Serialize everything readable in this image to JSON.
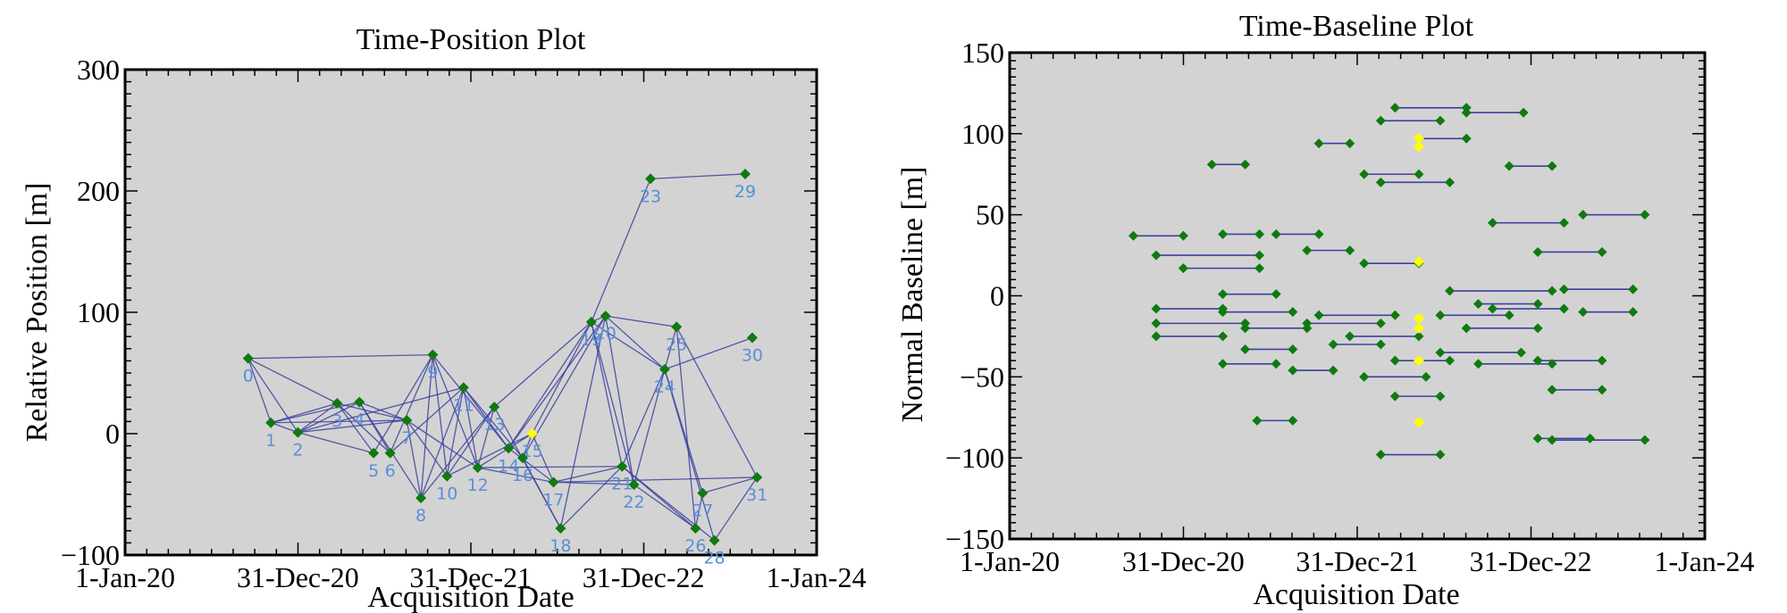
{
  "colors": {
    "plot_bg": "#d3d3d3",
    "edge": "#3b3f9e",
    "marker": "#0f7a0f",
    "reference": "#ffff00",
    "point_label": "#5b8fd6"
  },
  "chart_data": [
    {
      "type": "scatter",
      "title": "Time-Position Plot",
      "xlabel": "Acquisition Date",
      "ylabel": "Relative Position [m]",
      "xlim": [
        0,
        1461
      ],
      "ylim": [
        -100,
        300
      ],
      "x_ticks": [
        {
          "value": 0,
          "label": "1-Jan-20"
        },
        {
          "value": 365,
          "label": "31-Dec-20"
        },
        {
          "value": 730,
          "label": "31-Dec-21"
        },
        {
          "value": 1095,
          "label": "31-Dec-22"
        },
        {
          "value": 1460,
          "label": "1-Jan-24"
        }
      ],
      "y_ticks": [
        {
          "value": 300,
          "label": "300"
        },
        {
          "value": 200,
          "label": "200"
        },
        {
          "value": 100,
          "label": "100"
        },
        {
          "value": 0,
          "label": "0"
        },
        {
          "value": -100,
          "label": "−100"
        }
      ],
      "reference_point": 15,
      "points": [
        {
          "label": "0",
          "x": 260,
          "y": 62
        },
        {
          "label": "1",
          "x": 308,
          "y": 9
        },
        {
          "label": "2",
          "x": 365,
          "y": 1
        },
        {
          "label": "3",
          "x": 448,
          "y": 25
        },
        {
          "label": "4",
          "x": 495,
          "y": 26
        },
        {
          "label": "5",
          "x": 525,
          "y": -16
        },
        {
          "label": "6",
          "x": 560,
          "y": -16
        },
        {
          "label": "7",
          "x": 595,
          "y": 11
        },
        {
          "label": "8",
          "x": 625,
          "y": -53
        },
        {
          "label": "9",
          "x": 650,
          "y": 65
        },
        {
          "label": "10",
          "x": 680,
          "y": -35
        },
        {
          "label": "11",
          "x": 715,
          "y": 38
        },
        {
          "label": "12",
          "x": 745,
          "y": -28
        },
        {
          "label": "13",
          "x": 780,
          "y": 22
        },
        {
          "label": "14",
          "x": 810,
          "y": -12
        },
        {
          "label": "15",
          "x": 860,
          "y": 0
        },
        {
          "label": "16",
          "x": 840,
          "y": -20
        },
        {
          "label": "17",
          "x": 905,
          "y": -40
        },
        {
          "label": "18",
          "x": 920,
          "y": -78
        },
        {
          "label": "19",
          "x": 985,
          "y": 92
        },
        {
          "label": "20",
          "x": 1015,
          "y": 97
        },
        {
          "label": "21",
          "x": 1050,
          "y": -27
        },
        {
          "label": "22",
          "x": 1075,
          "y": -42
        },
        {
          "label": "23",
          "x": 1110,
          "y": 210
        },
        {
          "label": "24",
          "x": 1140,
          "y": 53
        },
        {
          "label": "25",
          "x": 1165,
          "y": 88
        },
        {
          "label": "26",
          "x": 1205,
          "y": -78
        },
        {
          "label": "27",
          "x": 1220,
          "y": -49
        },
        {
          "label": "28",
          "x": 1245,
          "y": -88
        },
        {
          "label": "29",
          "x": 1310,
          "y": 214
        },
        {
          "label": "30",
          "x": 1325,
          "y": 79
        },
        {
          "label": "31",
          "x": 1335,
          "y": -36
        }
      ],
      "edges": [
        [
          0,
          1
        ],
        [
          0,
          2
        ],
        [
          0,
          3
        ],
        [
          0,
          9
        ],
        [
          1,
          2
        ],
        [
          1,
          3
        ],
        [
          1,
          4
        ],
        [
          1,
          7
        ],
        [
          2,
          3
        ],
        [
          2,
          4
        ],
        [
          2,
          5
        ],
        [
          2,
          7
        ],
        [
          2,
          11
        ],
        [
          3,
          5
        ],
        [
          3,
          6
        ],
        [
          3,
          7
        ],
        [
          4,
          6
        ],
        [
          4,
          8
        ],
        [
          4,
          7
        ],
        [
          5,
          9
        ],
        [
          6,
          9
        ],
        [
          6,
          11
        ],
        [
          7,
          8
        ],
        [
          7,
          10
        ],
        [
          7,
          12
        ],
        [
          8,
          9
        ],
        [
          8,
          11
        ],
        [
          8,
          13
        ],
        [
          9,
          10
        ],
        [
          9,
          12
        ],
        [
          9,
          14
        ],
        [
          10,
          11
        ],
        [
          10,
          13
        ],
        [
          10,
          15
        ],
        [
          11,
          12
        ],
        [
          11,
          14
        ],
        [
          11,
          16
        ],
        [
          12,
          13
        ],
        [
          12,
          15
        ],
        [
          12,
          17
        ],
        [
          13,
          18
        ],
        [
          13,
          19
        ],
        [
          14,
          17
        ],
        [
          14,
          19
        ],
        [
          14,
          20
        ],
        [
          15,
          16
        ],
        [
          15,
          17
        ],
        [
          15,
          19
        ],
        [
          16,
          18
        ],
        [
          16,
          20
        ],
        [
          17,
          21
        ],
        [
          17,
          22
        ],
        [
          18,
          20
        ],
        [
          18,
          21
        ],
        [
          19,
          20
        ],
        [
          19,
          21
        ],
        [
          19,
          22
        ],
        [
          19,
          24
        ],
        [
          20,
          22
        ],
        [
          20,
          24
        ],
        [
          20,
          25
        ],
        [
          21,
          24
        ],
        [
          21,
          26
        ],
        [
          22,
          24
        ],
        [
          22,
          26
        ],
        [
          23,
          29
        ],
        [
          19,
          23
        ],
        [
          24,
          25
        ],
        [
          24,
          27
        ],
        [
          24,
          28
        ],
        [
          24,
          30
        ],
        [
          25,
          26
        ],
        [
          25,
          31
        ],
        [
          26,
          27
        ],
        [
          27,
          31
        ],
        [
          28,
          31
        ],
        [
          21,
          28
        ],
        [
          17,
          31
        ],
        [
          12,
          21
        ]
      ]
    },
    {
      "type": "scatter",
      "title": "Time-Baseline Plot",
      "xlabel": "Acquisition Date",
      "ylabel": "Normal Baseline [m]",
      "xlim": [
        0,
        1461
      ],
      "ylim": [
        -150,
        150
      ],
      "x_ticks": [
        {
          "value": 0,
          "label": "1-Jan-20"
        },
        {
          "value": 365,
          "label": "31-Dec-20"
        },
        {
          "value": 730,
          "label": "31-Dec-21"
        },
        {
          "value": 1095,
          "label": "31-Dec-22"
        },
        {
          "value": 1460,
          "label": "1-Jan-24"
        }
      ],
      "y_ticks": [
        {
          "value": 150,
          "label": "150"
        },
        {
          "value": 100,
          "label": "100"
        },
        {
          "value": 50,
          "label": "50"
        },
        {
          "value": 0,
          "label": "0"
        },
        {
          "value": -50,
          "label": "−50"
        },
        {
          "value": -100,
          "label": "−100"
        },
        {
          "value": -150,
          "label": "−150"
        }
      ],
      "segments": [
        {
          "x1": 260,
          "x2": 365,
          "y": 37
        },
        {
          "x1": 308,
          "x2": 525,
          "y": 25
        },
        {
          "x1": 365,
          "x2": 525,
          "y": 17
        },
        {
          "x1": 448,
          "x2": 525,
          "y": 38
        },
        {
          "x1": 308,
          "x2": 448,
          "y": -8
        },
        {
          "x1": 308,
          "x2": 495,
          "y": -17
        },
        {
          "x1": 308,
          "x2": 448,
          "y": -25
        },
        {
          "x1": 448,
          "x2": 595,
          "y": -10
        },
        {
          "x1": 495,
          "x2": 625,
          "y": -20
        },
        {
          "x1": 448,
          "x2": 560,
          "y": 1
        },
        {
          "x1": 495,
          "x2": 595,
          "y": -33
        },
        {
          "x1": 448,
          "x2": 560,
          "y": -42
        },
        {
          "x1": 425,
          "x2": 495,
          "y": 81
        },
        {
          "x1": 560,
          "x2": 650,
          "y": 38
        },
        {
          "x1": 625,
          "x2": 715,
          "y": 28
        },
        {
          "x1": 650,
          "x2": 715,
          "y": 94
        },
        {
          "x1": 595,
          "x2": 680,
          "y": -46
        },
        {
          "x1": 625,
          "x2": 780,
          "y": -17
        },
        {
          "x1": 650,
          "x2": 810,
          "y": -12
        },
        {
          "x1": 680,
          "x2": 780,
          "y": -30
        },
        {
          "x1": 715,
          "x2": 860,
          "y": -25
        },
        {
          "x1": 745,
          "x2": 860,
          "y": 75
        },
        {
          "x1": 780,
          "x2": 905,
          "y": 108
        },
        {
          "x1": 810,
          "x2": 960,
          "y": 116
        },
        {
          "x1": 860,
          "x2": 960,
          "y": 97
        },
        {
          "x1": 780,
          "x2": 925,
          "y": 70
        },
        {
          "x1": 745,
          "x2": 860,
          "y": 20
        },
        {
          "x1": 810,
          "x2": 925,
          "y": -40
        },
        {
          "x1": 745,
          "x2": 875,
          "y": -50
        },
        {
          "x1": 810,
          "x2": 905,
          "y": -62
        },
        {
          "x1": 780,
          "x2": 905,
          "y": -98
        },
        {
          "x1": 905,
          "x2": 1050,
          "y": -12
        },
        {
          "x1": 925,
          "x2": 1140,
          "y": 3
        },
        {
          "x1": 985,
          "x2": 1110,
          "y": -5
        },
        {
          "x1": 1015,
          "x2": 1165,
          "y": -8
        },
        {
          "x1": 960,
          "x2": 1110,
          "y": -20
        },
        {
          "x1": 905,
          "x2": 1075,
          "y": -35
        },
        {
          "x1": 985,
          "x2": 1140,
          "y": -42
        },
        {
          "x1": 1050,
          "x2": 1140,
          "y": 80
        },
        {
          "x1": 1015,
          "x2": 1165,
          "y": 45
        },
        {
          "x1": 1110,
          "x2": 1245,
          "y": 27
        },
        {
          "x1": 1165,
          "x2": 1310,
          "y": 4
        },
        {
          "x1": 1205,
          "x2": 1310,
          "y": -10
        },
        {
          "x1": 1110,
          "x2": 1245,
          "y": -40
        },
        {
          "x1": 1140,
          "x2": 1245,
          "y": -58
        },
        {
          "x1": 1110,
          "x2": 1220,
          "y": -88
        },
        {
          "x1": 1140,
          "x2": 1335,
          "y": -89
        },
        {
          "x1": 1205,
          "x2": 1335,
          "y": 50
        },
        {
          "x1": 960,
          "x2": 1080,
          "y": 113
        },
        {
          "x1": 520,
          "x2": 595,
          "y": -77
        }
      ],
      "reference_points": [
        {
          "x": 860,
          "y": 97
        },
        {
          "x": 860,
          "y": 92
        },
        {
          "x": 860,
          "y": 21
        },
        {
          "x": 860,
          "y": -14
        },
        {
          "x": 860,
          "y": -20
        },
        {
          "x": 860,
          "y": -40
        },
        {
          "x": 860,
          "y": -78
        }
      ]
    }
  ]
}
